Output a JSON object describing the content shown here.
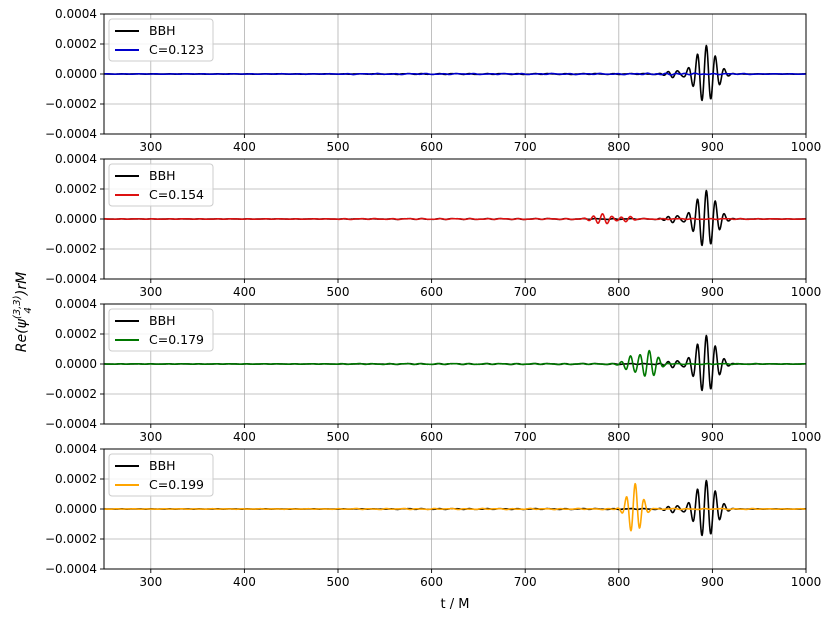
{
  "chart_data": {
    "type": "line",
    "xlabel": "t / M",
    "ylabel_text": "Re(ψ4(3,3))rM",
    "ylabel_parts": {
      "base": "Re(ψ",
      "sub": "4",
      "sup": "(3,3)",
      "tail": ")rM"
    },
    "xlim": [
      250,
      1000
    ],
    "ylim": [
      -0.0004,
      0.0004
    ],
    "xticks": [
      300,
      400,
      500,
      600,
      700,
      800,
      900,
      1000
    ],
    "xtick_labels": [
      "300",
      "400",
      "500",
      "600",
      "700",
      "800",
      "900",
      "1000"
    ],
    "yticks": [
      -0.0004,
      -0.0002,
      0.0,
      0.0002,
      0.0004
    ],
    "ytick_labels": [
      "−0.0004",
      "−0.0002",
      "0.0000",
      "0.0002",
      "0.0004"
    ],
    "grid": true,
    "legend_position": "top-left",
    "reference": {
      "name": "BBH",
      "color": "#000000",
      "packet": {
        "t_peak": 893,
        "amplitude": 0.00019,
        "period": 9.6,
        "width": 15
      }
    },
    "panels": [
      {
        "label": "C=0.123",
        "color": "#0000cc",
        "packet": {
          "t_peak": 860,
          "amplitude": 3e-06,
          "period": 10,
          "width": 40
        }
      },
      {
        "label": "C=0.154",
        "color": "#dd1111",
        "packet": {
          "t_peak": 782,
          "amplitude": 3.5e-05,
          "period": 10,
          "width": 12
        }
      },
      {
        "label": "C=0.179",
        "color": "#007700",
        "packet": {
          "t_peak": 832,
          "amplitude": 9e-05,
          "period": 10,
          "width": 12
        }
      },
      {
        "label": "C=0.199",
        "color": "#ffa500",
        "packet": {
          "t_peak": 817,
          "amplitude": 0.00017,
          "period": 9.6,
          "width": 10
        }
      }
    ]
  }
}
